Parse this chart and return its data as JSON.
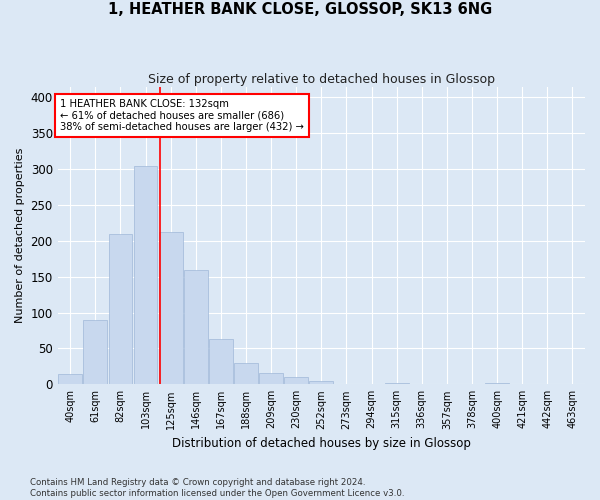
{
  "title": "1, HEATHER BANK CLOSE, GLOSSOP, SK13 6NG",
  "subtitle": "Size of property relative to detached houses in Glossop",
  "xlabel": "Distribution of detached houses by size in Glossop",
  "ylabel": "Number of detached properties",
  "bar_color": "#c8d8ee",
  "bar_edge_color": "#a0b8d8",
  "background_color": "#dce8f5",
  "grid_color": "#ffffff",
  "categories": [
    "40sqm",
    "61sqm",
    "82sqm",
    "103sqm",
    "125sqm",
    "146sqm",
    "167sqm",
    "188sqm",
    "209sqm",
    "230sqm",
    "252sqm",
    "273sqm",
    "294sqm",
    "315sqm",
    "336sqm",
    "357sqm",
    "378sqm",
    "400sqm",
    "421sqm",
    "442sqm",
    "463sqm"
  ],
  "values": [
    15,
    90,
    210,
    305,
    213,
    160,
    63,
    30,
    16,
    10,
    4,
    1,
    0,
    2,
    0,
    1,
    0,
    2,
    1,
    0,
    1
  ],
  "vline_x_index": 3.58,
  "annotation_box_text": "1 HEATHER BANK CLOSE: 132sqm\n← 61% of detached houses are smaller (686)\n38% of semi-detached houses are larger (432) →",
  "footer_text": "Contains HM Land Registry data © Crown copyright and database right 2024.\nContains public sector information licensed under the Open Government Licence v3.0.",
  "ylim": [
    0,
    415
  ],
  "yticks": [
    0,
    50,
    100,
    150,
    200,
    250,
    300,
    350,
    400
  ]
}
